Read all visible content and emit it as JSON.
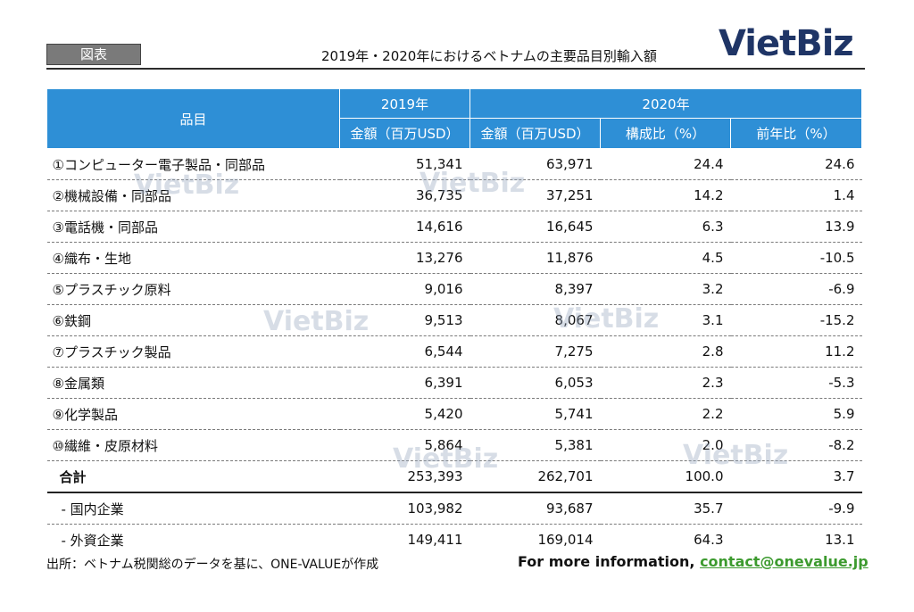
{
  "header": {
    "badge": "図表",
    "title": "2019年・2020年におけるベトナムの主要品目別輸入額",
    "logo": "VietBiz"
  },
  "table": {
    "columns": {
      "item": "品目",
      "year2019": "2019年",
      "year2020": "2020年",
      "amount2019": "金額（百万USD）",
      "amount2020": "金額（百万USD）",
      "share": "構成比（%）",
      "yoy": "前年比（%）"
    },
    "rows": [
      {
        "item": "①コンピューター電子製品・同部品",
        "v2019": "51,341",
        "v2020": "63,971",
        "share": "24.4",
        "yoy": "24.6"
      },
      {
        "item": "②機械設備・同部品",
        "v2019": "36,735",
        "v2020": "37,251",
        "share": "14.2",
        "yoy": "1.4"
      },
      {
        "item": "③電話機・同部品",
        "v2019": "14,616",
        "v2020": "16,645",
        "share": "6.3",
        "yoy": "13.9"
      },
      {
        "item": "④織布・生地",
        "v2019": "13,276",
        "v2020": "11,876",
        "share": "4.5",
        "yoy": "-10.5"
      },
      {
        "item": "⑤プラスチック原料",
        "v2019": "9,016",
        "v2020": "8,397",
        "share": "3.2",
        "yoy": "-6.9"
      },
      {
        "item": "⑥鉄鋼",
        "v2019": "9,513",
        "v2020": "8,067",
        "share": "3.1",
        "yoy": "-15.2"
      },
      {
        "item": "⑦プラスチック製品",
        "v2019": "6,544",
        "v2020": "7,275",
        "share": "2.8",
        "yoy": "11.2"
      },
      {
        "item": "⑧金属類",
        "v2019": "6,391",
        "v2020": "6,053",
        "share": "2.3",
        "yoy": "-5.3"
      },
      {
        "item": "⑨化学製品",
        "v2019": "5,420",
        "v2020": "5,741",
        "share": "2.2",
        "yoy": "5.9"
      },
      {
        "item": "⑩繊維・皮原材料",
        "v2019": "5,864",
        "v2020": "5,381",
        "share": "2.0",
        "yoy": "-8.2"
      },
      {
        "item": "合計",
        "v2019": "253,393",
        "v2020": "262,701",
        "share": "100.0",
        "yoy": "3.7"
      },
      {
        "item": "- 国内企業",
        "v2019": "103,982",
        "v2020": "93,687",
        "share": "35.7",
        "yoy": "-9.9"
      },
      {
        "item": "- 外資企業",
        "v2019": "149,411",
        "v2020": "169,014",
        "share": "64.3",
        "yoy": "13.1"
      }
    ]
  },
  "watermark": "VietBiz",
  "footer": {
    "source": "出所：ベトナム税関総のデータを基に、ONE-VALUEが作成",
    "more_text": "For more information, ",
    "contact": "contact@onevalue.jp"
  }
}
